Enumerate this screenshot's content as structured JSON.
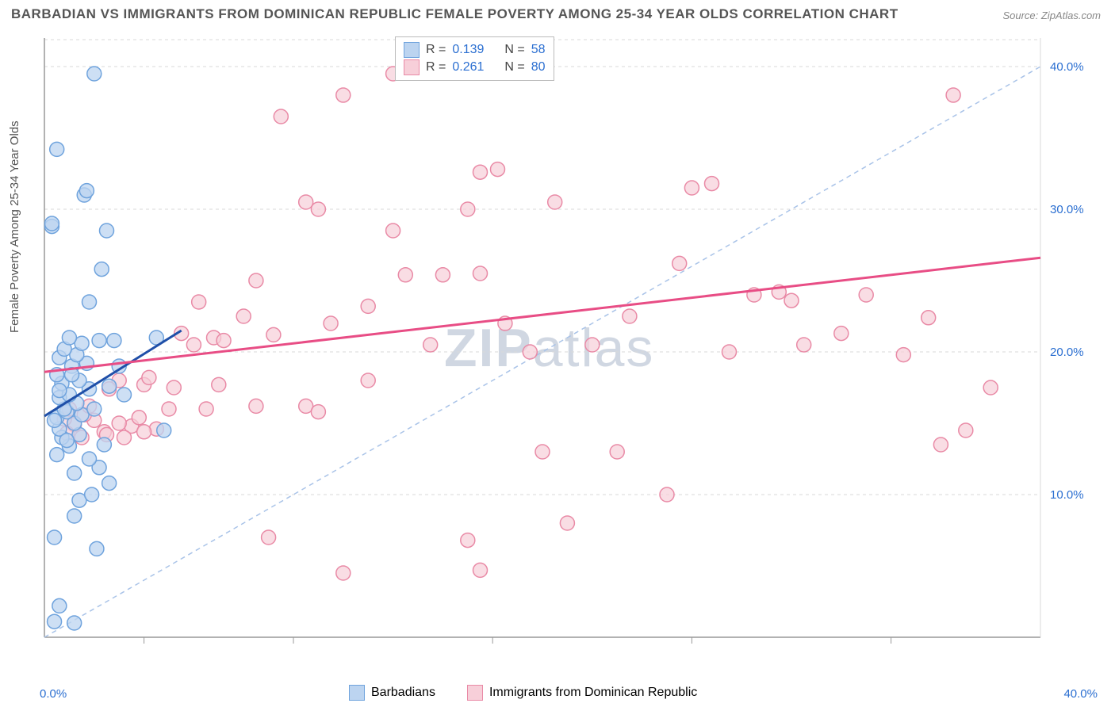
{
  "title": "BARBADIAN VS IMMIGRANTS FROM DOMINICAN REPUBLIC FEMALE POVERTY AMONG 25-34 YEAR OLDS CORRELATION CHART",
  "source": "Source: ZipAtlas.com",
  "ylabel": "Female Poverty Among 25-34 Year Olds",
  "watermark_a": "ZIP",
  "watermark_b": "atlas",
  "chart": {
    "type": "scatter",
    "xlim": [
      0,
      40
    ],
    "ylim": [
      0,
      42
    ],
    "x_axis_min_label": "0.0%",
    "x_axis_max_label": "40.0%",
    "y_ticks": [
      10,
      20,
      30,
      40
    ],
    "y_tick_labels": [
      "10.0%",
      "20.0%",
      "30.0%",
      "40.0%"
    ],
    "x_minor_ticks": [
      4,
      10,
      18,
      26,
      34
    ],
    "background_color": "#ffffff",
    "grid_color": "#d9d9d9",
    "axis_color": "#999999",
    "tick_label_color": "#2b6fd1",
    "diag_dash_color": "#a9c3e8",
    "series": [
      {
        "name": "Barbadians",
        "color_fill": "#bcd4f0",
        "color_stroke": "#6fa3dd",
        "marker_radius": 9,
        "marker_opacity": 0.75,
        "r": 0.139,
        "n": 58,
        "trend": {
          "x1": 0,
          "y1": 15.5,
          "x2": 5.5,
          "y2": 21.5,
          "color": "#1f4fa8",
          "width": 3
        },
        "points": [
          [
            0.3,
            28.8
          ],
          [
            0.3,
            29.0
          ],
          [
            0.5,
            34.2
          ],
          [
            1.6,
            31.0
          ],
          [
            1.7,
            31.3
          ],
          [
            2.0,
            39.5
          ],
          [
            0.4,
            1.1
          ],
          [
            1.2,
            1.0
          ],
          [
            0.6,
            2.2
          ],
          [
            0.4,
            7.0
          ],
          [
            2.1,
            6.2
          ],
          [
            1.4,
            9.6
          ],
          [
            1.9,
            10.0
          ],
          [
            2.6,
            10.8
          ],
          [
            1.2,
            11.5
          ],
          [
            2.2,
            11.9
          ],
          [
            0.5,
            12.8
          ],
          [
            1.0,
            13.4
          ],
          [
            0.7,
            14.0
          ],
          [
            1.4,
            14.2
          ],
          [
            0.6,
            14.6
          ],
          [
            1.2,
            15.0
          ],
          [
            0.5,
            15.4
          ],
          [
            0.9,
            15.8
          ],
          [
            1.5,
            15.6
          ],
          [
            0.8,
            16.0
          ],
          [
            1.3,
            16.4
          ],
          [
            0.6,
            16.8
          ],
          [
            1.0,
            17.0
          ],
          [
            1.8,
            17.4
          ],
          [
            0.7,
            17.8
          ],
          [
            1.4,
            18.0
          ],
          [
            0.5,
            18.4
          ],
          [
            1.1,
            19.0
          ],
          [
            1.7,
            19.2
          ],
          [
            0.6,
            19.6
          ],
          [
            1.3,
            19.8
          ],
          [
            0.8,
            20.2
          ],
          [
            1.5,
            20.6
          ],
          [
            2.2,
            20.8
          ],
          [
            2.8,
            20.8
          ],
          [
            1.0,
            21.0
          ],
          [
            3.2,
            17.0
          ],
          [
            4.8,
            14.5
          ],
          [
            4.5,
            21.0
          ],
          [
            1.8,
            23.5
          ],
          [
            2.3,
            25.8
          ],
          [
            2.5,
            28.5
          ],
          [
            1.2,
            8.5
          ],
          [
            1.8,
            12.5
          ],
          [
            2.4,
            13.5
          ],
          [
            0.9,
            13.8
          ],
          [
            0.4,
            15.2
          ],
          [
            0.6,
            17.3
          ],
          [
            1.1,
            18.4
          ],
          [
            2.0,
            16.0
          ],
          [
            2.6,
            17.6
          ],
          [
            3.0,
            19.0
          ]
        ]
      },
      {
        "name": "Immigrants from Dominican Republic",
        "color_fill": "#f7cfd9",
        "color_stroke": "#e98aa6",
        "marker_radius": 9,
        "marker_opacity": 0.7,
        "r": 0.261,
        "n": 80,
        "trend": {
          "x1": 0,
          "y1": 18.6,
          "x2": 40,
          "y2": 26.6,
          "color": "#e84d85",
          "width": 3
        },
        "points": [
          [
            12.0,
            4.5
          ],
          [
            17.5,
            4.7
          ],
          [
            17.0,
            6.8
          ],
          [
            9.0,
            7.0
          ],
          [
            21.0,
            8.0
          ],
          [
            25.0,
            10.0
          ],
          [
            36.0,
            13.5
          ],
          [
            23.0,
            13.0
          ],
          [
            3.5,
            14.8
          ],
          [
            4.5,
            14.6
          ],
          [
            2.0,
            15.2
          ],
          [
            1.2,
            14.9
          ],
          [
            0.8,
            15.3
          ],
          [
            1.6,
            15.6
          ],
          [
            2.4,
            14.4
          ],
          [
            3.0,
            15.0
          ],
          [
            3.8,
            15.4
          ],
          [
            1.0,
            16.0
          ],
          [
            1.8,
            16.2
          ],
          [
            5.0,
            16.0
          ],
          [
            6.5,
            16.0
          ],
          [
            5.2,
            17.5
          ],
          [
            4.0,
            17.7
          ],
          [
            7.0,
            17.7
          ],
          [
            8.5,
            16.2
          ],
          [
            3.0,
            18.0
          ],
          [
            4.2,
            18.2
          ],
          [
            2.6,
            17.4
          ],
          [
            6.0,
            20.5
          ],
          [
            6.8,
            21.0
          ],
          [
            7.2,
            20.8
          ],
          [
            8.0,
            22.5
          ],
          [
            9.2,
            21.2
          ],
          [
            13.0,
            18.0
          ],
          [
            10.5,
            16.2
          ],
          [
            11.0,
            15.8
          ],
          [
            11.5,
            22.0
          ],
          [
            13.0,
            23.2
          ],
          [
            14.5,
            25.4
          ],
          [
            16.0,
            25.4
          ],
          [
            17.5,
            25.5
          ],
          [
            14.0,
            28.5
          ],
          [
            17.0,
            30.0
          ],
          [
            17.5,
            32.6
          ],
          [
            18.2,
            32.8
          ],
          [
            10.5,
            30.5
          ],
          [
            12.0,
            38.0
          ],
          [
            9.5,
            36.5
          ],
          [
            14.0,
            39.5
          ],
          [
            19.5,
            20.0
          ],
          [
            20.5,
            30.5
          ],
          [
            25.5,
            26.2
          ],
          [
            26.0,
            31.5
          ],
          [
            26.8,
            31.8
          ],
          [
            28.5,
            24.0
          ],
          [
            29.5,
            24.2
          ],
          [
            30.0,
            23.6
          ],
          [
            30.5,
            20.5
          ],
          [
            32.0,
            21.3
          ],
          [
            33.0,
            24.0
          ],
          [
            35.5,
            22.4
          ],
          [
            38.0,
            17.5
          ],
          [
            36.5,
            38.0
          ],
          [
            34.5,
            19.8
          ],
          [
            37.0,
            14.5
          ],
          [
            20.0,
            13.0
          ],
          [
            22.0,
            20.5
          ],
          [
            5.5,
            21.3
          ],
          [
            6.2,
            23.5
          ],
          [
            8.5,
            25.0
          ],
          [
            2.5,
            14.2
          ],
          [
            3.2,
            14.0
          ],
          [
            4.0,
            14.4
          ],
          [
            1.5,
            14.0
          ],
          [
            0.9,
            14.3
          ],
          [
            11.0,
            30.0
          ],
          [
            15.5,
            20.5
          ],
          [
            18.5,
            22.0
          ],
          [
            23.5,
            22.5
          ],
          [
            27.5,
            20.0
          ]
        ]
      }
    ]
  },
  "legend_top": [
    {
      "swatch_fill": "#bcd4f0",
      "swatch_stroke": "#6fa3dd",
      "r_label": "R =",
      "r_val": "0.139",
      "n_label": "N =",
      "n_val": "58"
    },
    {
      "swatch_fill": "#f7cfd9",
      "swatch_stroke": "#e98aa6",
      "r_label": "R =",
      "r_val": "0.261",
      "n_label": "N =",
      "n_val": "80"
    }
  ],
  "legend_bottom": [
    {
      "swatch_fill": "#bcd4f0",
      "swatch_stroke": "#6fa3dd",
      "label": "Barbadians"
    },
    {
      "swatch_fill": "#f7cfd9",
      "swatch_stroke": "#e98aa6",
      "label": "Immigrants from Dominican Republic"
    }
  ]
}
